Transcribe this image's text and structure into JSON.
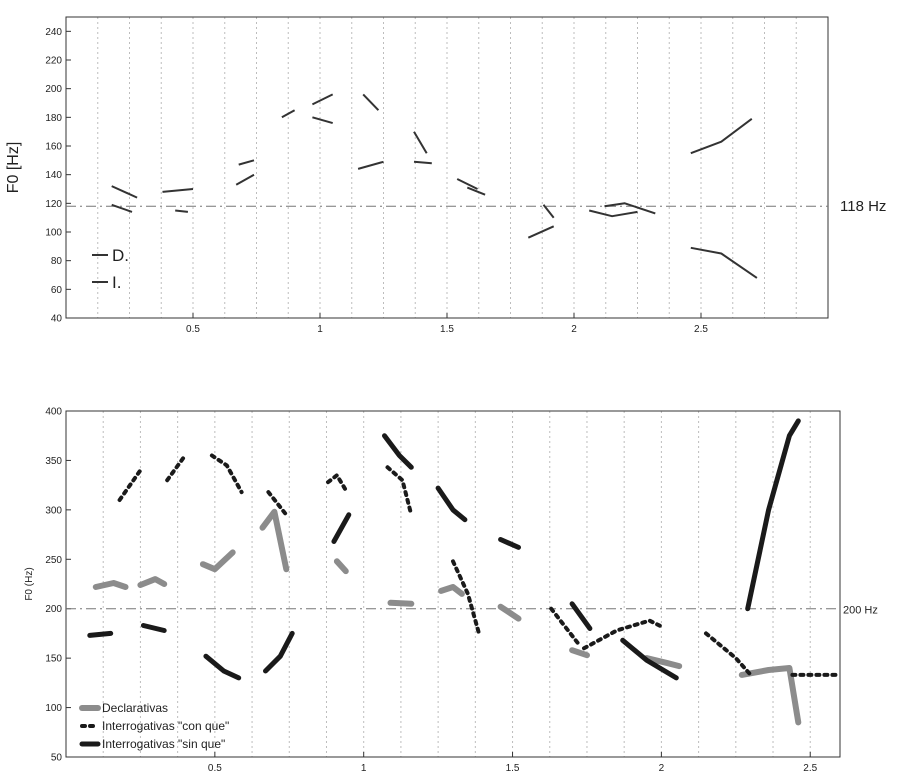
{
  "chart_data": [
    {
      "type": "line",
      "title": "",
      "xlabel": "",
      "ylabel": "F0 [Hz]",
      "xlim": [
        0,
        3
      ],
      "ylim": [
        40,
        250
      ],
      "x_ticks": [
        0.5,
        1,
        1.5,
        2,
        2.5
      ],
      "x_tick_labels": [
        "0.5",
        "1",
        "1.5",
        "2",
        "2.5"
      ],
      "y_ticks": [
        40,
        60,
        80,
        100,
        120,
        140,
        160,
        180,
        200,
        220,
        240
      ],
      "y_tick_labels": [
        "40",
        "60",
        "80",
        "100",
        "120",
        "140",
        "160",
        "180",
        "200",
        "220",
        "240"
      ],
      "grid": "vertical dotted lines",
      "reference_line": {
        "value": 118,
        "label": "118 Hz"
      },
      "legend_position": "bottom-left",
      "series": [
        {
          "name": "D.",
          "color": "#333333",
          "style": "solid",
          "segments": [
            [
              [
                0.18,
                132
              ],
              [
                0.28,
                124
              ]
            ],
            [
              [
                0.18,
                119
              ],
              [
                0.26,
                114
              ]
            ],
            [
              [
                0.38,
                128
              ],
              [
                0.5,
                130
              ]
            ],
            [
              [
                0.43,
                115
              ],
              [
                0.48,
                114
              ]
            ],
            [
              [
                0.68,
                147
              ],
              [
                0.74,
                150
              ]
            ],
            [
              [
                0.67,
                133
              ],
              [
                0.74,
                140
              ]
            ],
            [
              [
                0.85,
                180
              ],
              [
                0.9,
                185
              ]
            ],
            [
              [
                0.97,
                189
              ],
              [
                1.05,
                196
              ]
            ],
            [
              [
                1.17,
                196
              ],
              [
                1.23,
                185
              ]
            ],
            [
              [
                1.15,
                144
              ],
              [
                1.25,
                149
              ]
            ],
            [
              [
                1.37,
                170
              ],
              [
                1.42,
                155
              ]
            ],
            [
              [
                1.54,
                137
              ],
              [
                1.62,
                130
              ]
            ],
            [
              [
                1.88,
                119
              ],
              [
                1.92,
                110
              ]
            ],
            [
              [
                2.12,
                118
              ],
              [
                2.2,
                120
              ],
              [
                2.32,
                113
              ]
            ],
            [
              [
                2.46,
                155
              ],
              [
                2.58,
                163
              ],
              [
                2.7,
                179
              ]
            ]
          ]
        },
        {
          "name": "I.",
          "color": "#333333",
          "style": "solid",
          "segments": [
            [
              [
                0.97,
                180
              ],
              [
                1.05,
                176
              ]
            ],
            [
              [
                1.37,
                149
              ],
              [
                1.44,
                148
              ]
            ],
            [
              [
                1.58,
                131
              ],
              [
                1.65,
                126
              ]
            ],
            [
              [
                1.82,
                96
              ],
              [
                1.92,
                104
              ]
            ],
            [
              [
                2.06,
                115
              ],
              [
                2.15,
                111
              ],
              [
                2.25,
                114
              ]
            ],
            [
              [
                2.46,
                89
              ],
              [
                2.58,
                85
              ],
              [
                2.72,
                68
              ]
            ]
          ]
        }
      ]
    },
    {
      "type": "line",
      "title": "",
      "xlabel": "",
      "ylabel": "F0 (Hz)",
      "xlim": [
        0,
        2.6
      ],
      "ylim": [
        50,
        400
      ],
      "x_ticks": [
        0.5,
        1,
        1.5,
        2,
        2.5
      ],
      "x_tick_labels": [
        "0.5",
        "1",
        "1.5",
        "2",
        "2.5"
      ],
      "y_ticks": [
        50,
        100,
        150,
        200,
        250,
        300,
        350,
        400
      ],
      "y_tick_labels": [
        "50",
        "100",
        "150",
        "200",
        "250",
        "300",
        "350",
        "400"
      ],
      "grid": "vertical dotted lines",
      "reference_line": {
        "value": 200,
        "label": "200 Hz"
      },
      "legend_position": "bottom-left",
      "series": [
        {
          "name": "Declarativas",
          "color": "#8c8c8c",
          "style": "solid",
          "segments": [
            [
              [
                0.1,
                222
              ],
              [
                0.16,
                226
              ],
              [
                0.2,
                222
              ]
            ],
            [
              [
                0.25,
                224
              ],
              [
                0.3,
                230
              ],
              [
                0.33,
                225
              ]
            ],
            [
              [
                0.46,
                245
              ],
              [
                0.5,
                240
              ],
              [
                0.56,
                257
              ]
            ],
            [
              [
                0.66,
                282
              ],
              [
                0.7,
                298
              ],
              [
                0.74,
                240
              ]
            ],
            [
              [
                0.91,
                248
              ],
              [
                0.94,
                238
              ]
            ],
            [
              [
                1.09,
                206
              ],
              [
                1.16,
                205
              ]
            ],
            [
              [
                1.26,
                218
              ],
              [
                1.3,
                222
              ],
              [
                1.33,
                215
              ]
            ],
            [
              [
                1.46,
                202
              ],
              [
                1.52,
                190
              ]
            ],
            [
              [
                1.7,
                158
              ],
              [
                1.75,
                153
              ]
            ],
            [
              [
                1.95,
                150
              ],
              [
                2.02,
                145
              ],
              [
                2.06,
                142
              ]
            ],
            [
              [
                2.27,
                133
              ],
              [
                2.36,
                138
              ],
              [
                2.43,
                140
              ],
              [
                2.46,
                85
              ]
            ]
          ]
        },
        {
          "name": "Interrogativas \"con que\"",
          "color": "#1a1a1a",
          "style": "dotted",
          "segments": [
            [
              [
                0.18,
                310
              ],
              [
                0.25,
                340
              ]
            ],
            [
              [
                0.34,
                330
              ],
              [
                0.4,
                355
              ]
            ],
            [
              [
                0.49,
                355
              ],
              [
                0.54,
                345
              ],
              [
                0.59,
                318
              ]
            ],
            [
              [
                0.68,
                318
              ],
              [
                0.74,
                295
              ]
            ],
            [
              [
                0.88,
                328
              ],
              [
                0.91,
                335
              ],
              [
                0.94,
                320
              ]
            ],
            [
              [
                1.08,
                343
              ],
              [
                1.13,
                330
              ],
              [
                1.16,
                295
              ]
            ],
            [
              [
                1.3,
                248
              ],
              [
                1.35,
                215
              ],
              [
                1.39,
                172
              ]
            ],
            [
              [
                1.63,
                200
              ],
              [
                1.72,
                165
              ]
            ],
            [
              [
                1.74,
                160
              ],
              [
                1.85,
                178
              ],
              [
                1.96,
                188
              ],
              [
                2.0,
                182
              ]
            ],
            [
              [
                2.15,
                175
              ],
              [
                2.25,
                150
              ],
              [
                2.3,
                133
              ]
            ],
            [
              [
                2.44,
                133
              ],
              [
                2.59,
                133
              ]
            ]
          ]
        },
        {
          "name": "Interrogativas \"sin que\"",
          "color": "#1a1a1a",
          "style": "solid",
          "segments": [
            [
              [
                0.08,
                173
              ],
              [
                0.15,
                175
              ]
            ],
            [
              [
                0.26,
                183
              ],
              [
                0.33,
                178
              ]
            ],
            [
              [
                0.47,
                152
              ],
              [
                0.53,
                137
              ],
              [
                0.58,
                130
              ]
            ],
            [
              [
                0.67,
                137
              ],
              [
                0.72,
                152
              ],
              [
                0.76,
                175
              ]
            ],
            [
              [
                0.9,
                268
              ],
              [
                0.95,
                295
              ]
            ],
            [
              [
                1.07,
                375
              ],
              [
                1.12,
                355
              ],
              [
                1.16,
                343
              ]
            ],
            [
              [
                1.25,
                322
              ],
              [
                1.3,
                300
              ],
              [
                1.34,
                290
              ]
            ],
            [
              [
                1.46,
                270
              ],
              [
                1.52,
                262
              ]
            ],
            [
              [
                1.7,
                205
              ],
              [
                1.76,
                180
              ]
            ],
            [
              [
                1.87,
                168
              ],
              [
                1.95,
                148
              ],
              [
                2.05,
                130
              ]
            ],
            [
              [
                2.29,
                200
              ],
              [
                2.36,
                300
              ],
              [
                2.43,
                375
              ],
              [
                2.46,
                390
              ]
            ]
          ]
        }
      ]
    }
  ]
}
